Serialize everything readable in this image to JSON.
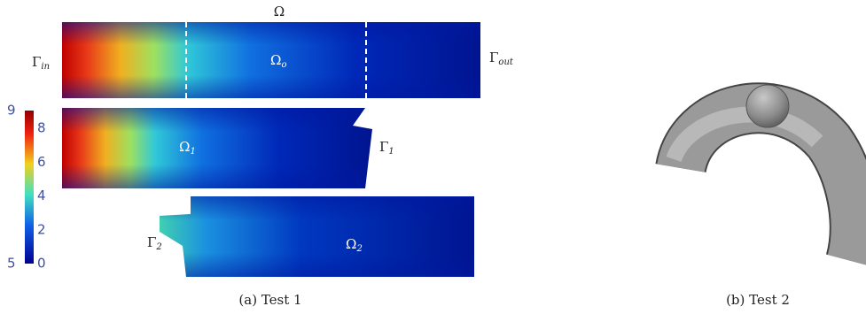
{
  "panel_a": {
    "labels": {
      "omega": "Ω",
      "gamma_in": {
        "symbol": "Γ",
        "sub": "in"
      },
      "omega_o": {
        "symbol": "Ω",
        "sub": "o"
      },
      "gamma_out": {
        "symbol": "Γ",
        "sub": "out"
      },
      "omega_1": {
        "symbol": "Ω",
        "sub": "1"
      },
      "gamma_1": {
        "symbol": "Γ",
        "sub": "1"
      },
      "gamma_2": {
        "symbol": "Γ",
        "sub": "2"
      },
      "omega_2": {
        "symbol": "Ω",
        "sub": "2"
      }
    },
    "colorbar": {
      "top": "9",
      "bottom": "5",
      "ticks": [
        "8",
        "6",
        "4",
        "2",
        "0"
      ]
    },
    "caption": "(a) Test 1"
  },
  "panel_b": {
    "caption": "(b) Test 2"
  }
}
